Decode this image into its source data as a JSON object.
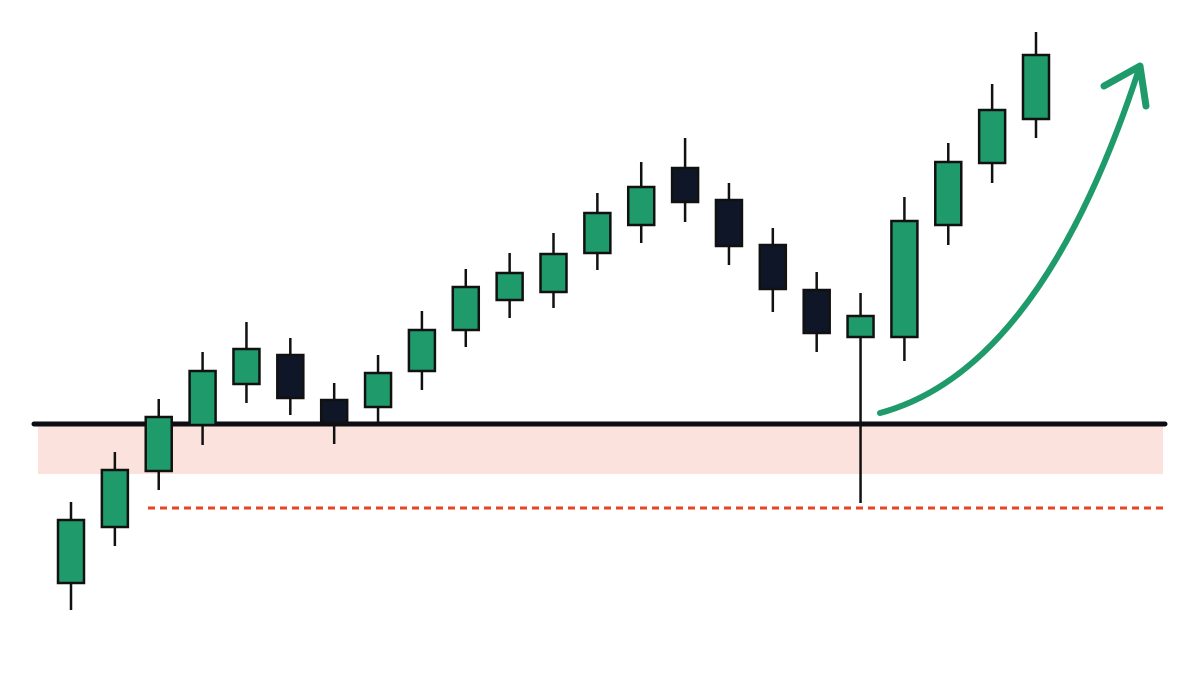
{
  "chart_data": {
    "type": "candlestick",
    "open": [
      92,
      148,
      204,
      250,
      291,
      320,
      275,
      268,
      304,
      345,
      375,
      383,
      422,
      450,
      507,
      475,
      430,
      385,
      338,
      338,
      450,
      512,
      556
    ],
    "high": [
      173,
      223,
      276,
      323,
      353,
      337,
      292,
      320,
      364,
      406,
      422,
      442,
      482,
      513,
      537,
      492,
      447,
      403,
      382,
      478,
      532,
      591,
      643
    ],
    "low": [
      65,
      129,
      185,
      230,
      272,
      260,
      231,
      253,
      285,
      328,
      357,
      367,
      405,
      432,
      453,
      410,
      363,
      323,
      172,
      314,
      430,
      492,
      537
    ],
    "close": [
      155,
      205,
      258,
      304,
      326,
      277,
      252,
      302,
      345,
      388,
      402,
      421,
      462,
      488,
      473,
      429,
      386,
      342,
      359,
      454,
      513,
      565,
      620
    ],
    "up_color": "#1f9a6b",
    "down_color": "#0f1627",
    "ylim": [
      0,
      675
    ],
    "support": 251,
    "zone": [
      201,
      251
    ],
    "stop": 167,
    "zone_color": "#fbe2dd",
    "stop_color": "#e8441f"
  }
}
